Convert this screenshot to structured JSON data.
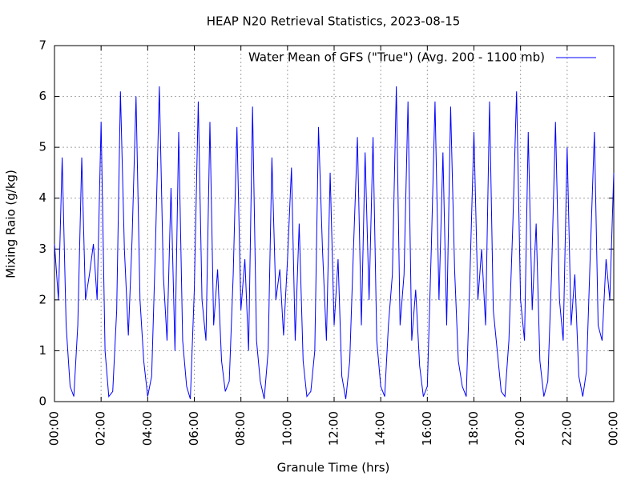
{
  "chart_data": {
    "type": "line",
    "title": "HEAP N20 Retrieval Statistics, 2023-08-15",
    "x_label": "Granule Time (hrs)",
    "y_label": "Mixing Raio (g/kg)",
    "x": [
      0,
      0.17,
      0.33,
      0.5,
      0.67,
      0.83,
      1,
      1.17,
      1.33,
      1.5,
      1.67,
      1.83,
      2,
      2.17,
      2.33,
      2.5,
      2.67,
      2.83,
      3,
      3.17,
      3.33,
      3.5,
      3.67,
      3.83,
      4,
      4.17,
      4.33,
      4.5,
      4.67,
      4.83,
      5,
      5.17,
      5.33,
      5.5,
      5.67,
      5.83,
      6,
      6.17,
      6.33,
      6.5,
      6.67,
      6.83,
      7,
      7.17,
      7.33,
      7.5,
      7.67,
      7.83,
      8,
      8.17,
      8.33,
      8.5,
      8.67,
      8.83,
      9,
      9.17,
      9.33,
      9.5,
      9.67,
      9.83,
      10,
      10.17,
      10.33,
      10.5,
      10.67,
      10.83,
      11,
      11.17,
      11.33,
      11.5,
      11.67,
      11.83,
      12,
      12.17,
      12.33,
      12.5,
      12.67,
      12.83,
      13,
      13.17,
      13.33,
      13.5,
      13.67,
      13.83,
      14,
      14.17,
      14.33,
      14.5,
      14.67,
      14.83,
      15,
      15.17,
      15.33,
      15.5,
      15.67,
      15.83,
      16,
      16.17,
      16.33,
      16.5,
      16.67,
      16.83,
      17,
      17.17,
      17.33,
      17.5,
      17.67,
      17.83,
      18,
      18.17,
      18.33,
      18.5,
      18.67,
      18.83,
      19,
      19.17,
      19.33,
      19.5,
      19.67,
      19.83,
      20,
      20.17,
      20.33,
      20.5,
      20.67,
      20.83,
      21,
      21.17,
      21.33,
      21.5,
      21.67,
      21.83,
      22,
      22.17,
      22.33,
      22.5,
      22.67,
      22.83,
      23,
      23.17,
      23.33,
      23.5,
      23.67,
      23.83,
      24
    ],
    "series": [
      {
        "name": "Water Mean of GFS (\"True\") (Avg. 200 - 1100 mb)",
        "color": "#0000ff",
        "values": [
          3.1,
          2.0,
          4.8,
          1.5,
          0.3,
          0.1,
          1.5,
          4.8,
          2.0,
          2.5,
          3.1,
          2.0,
          5.5,
          1.0,
          0.1,
          0.2,
          1.8,
          6.1,
          3.0,
          1.3,
          3.2,
          6.0,
          2.0,
          0.8,
          0.1,
          0.5,
          3.0,
          6.2,
          2.5,
          1.2,
          4.2,
          1.0,
          5.3,
          1.2,
          0.3,
          0.05,
          2.2,
          5.9,
          2.0,
          1.2,
          5.5,
          1.5,
          2.6,
          0.8,
          0.2,
          0.4,
          2.5,
          5.4,
          1.8,
          2.8,
          1.0,
          5.8,
          1.2,
          0.4,
          0.05,
          1.0,
          4.8,
          2.0,
          2.6,
          1.3,
          2.8,
          4.6,
          1.2,
          3.5,
          0.8,
          0.1,
          0.2,
          1.0,
          5.4,
          3.0,
          1.2,
          4.5,
          1.5,
          2.8,
          0.5,
          0.05,
          0.8,
          3.0,
          5.2,
          1.5,
          4.9,
          2.0,
          5.2,
          1.2,
          0.3,
          0.1,
          1.5,
          2.5,
          6.2,
          1.5,
          2.5,
          5.9,
          1.2,
          2.2,
          0.7,
          0.1,
          0.3,
          3.0,
          5.9,
          2.0,
          4.9,
          1.5,
          5.8,
          2.6,
          0.8,
          0.3,
          0.1,
          2.5,
          5.3,
          2.0,
          3.0,
          1.5,
          5.9,
          1.8,
          1.0,
          0.2,
          0.1,
          1.2,
          3.5,
          6.1,
          2.0,
          1.2,
          5.3,
          1.8,
          3.5,
          0.8,
          0.1,
          0.4,
          2.5,
          5.5,
          2.0,
          1.2,
          5.0,
          1.5,
          2.5,
          0.5,
          0.1,
          0.6,
          3.0,
          5.3,
          1.5,
          1.2,
          2.8,
          2.0,
          4.5
        ]
      }
    ],
    "xlim": [
      0,
      24
    ],
    "xticks": [
      {
        "value": 0,
        "label": "00:00"
      },
      {
        "value": 2,
        "label": "02:00"
      },
      {
        "value": 4,
        "label": "04:00"
      },
      {
        "value": 6,
        "label": "06:00"
      },
      {
        "value": 8,
        "label": "08:00"
      },
      {
        "value": 10,
        "label": "10:00"
      },
      {
        "value": 12,
        "label": "12:00"
      },
      {
        "value": 14,
        "label": "14:00"
      },
      {
        "value": 16,
        "label": "16:00"
      },
      {
        "value": 18,
        "label": "18:00"
      },
      {
        "value": 20,
        "label": "20:00"
      },
      {
        "value": 22,
        "label": "22:00"
      },
      {
        "value": 24,
        "label": "00:00"
      }
    ],
    "ylim": [
      0,
      7
    ],
    "yticks": [
      0,
      1,
      2,
      3,
      4,
      5,
      6,
      7
    ],
    "grid": true,
    "legend_position": "top right"
  }
}
